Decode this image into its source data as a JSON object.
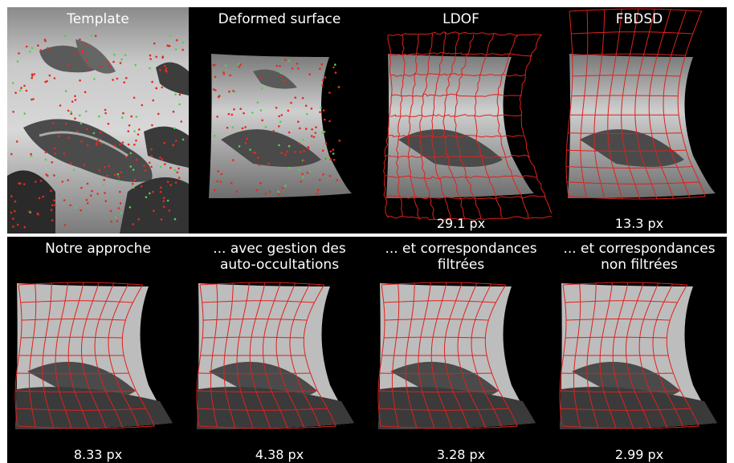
{
  "colors": {
    "background": "#000000",
    "grid": "#e0201c",
    "separator": "#ffffff",
    "point_red": "#e8291f",
    "point_green": "#4fd24a"
  },
  "panels": [
    {
      "title": "Template",
      "error": "",
      "kind": "template"
    },
    {
      "title": "Deformed surface",
      "error": "",
      "kind": "deformed"
    },
    {
      "title": "LDOF",
      "error": "29.1 px",
      "kind": "ldof"
    },
    {
      "title": "FBDSD",
      "error": "13.3 px",
      "kind": "fbdsd"
    },
    {
      "title": "Notre approche",
      "error": "8.33 px",
      "kind": "result"
    },
    {
      "title": "... avec gestion des\nauto-occultations",
      "error": "4.38 px",
      "kind": "result"
    },
    {
      "title": "... et correspondances\nfiltrées",
      "error": "3.28 px",
      "kind": "result"
    },
    {
      "title": "... et correspondances\nnon filtrées",
      "error": "2.99 px",
      "kind": "result"
    }
  ]
}
